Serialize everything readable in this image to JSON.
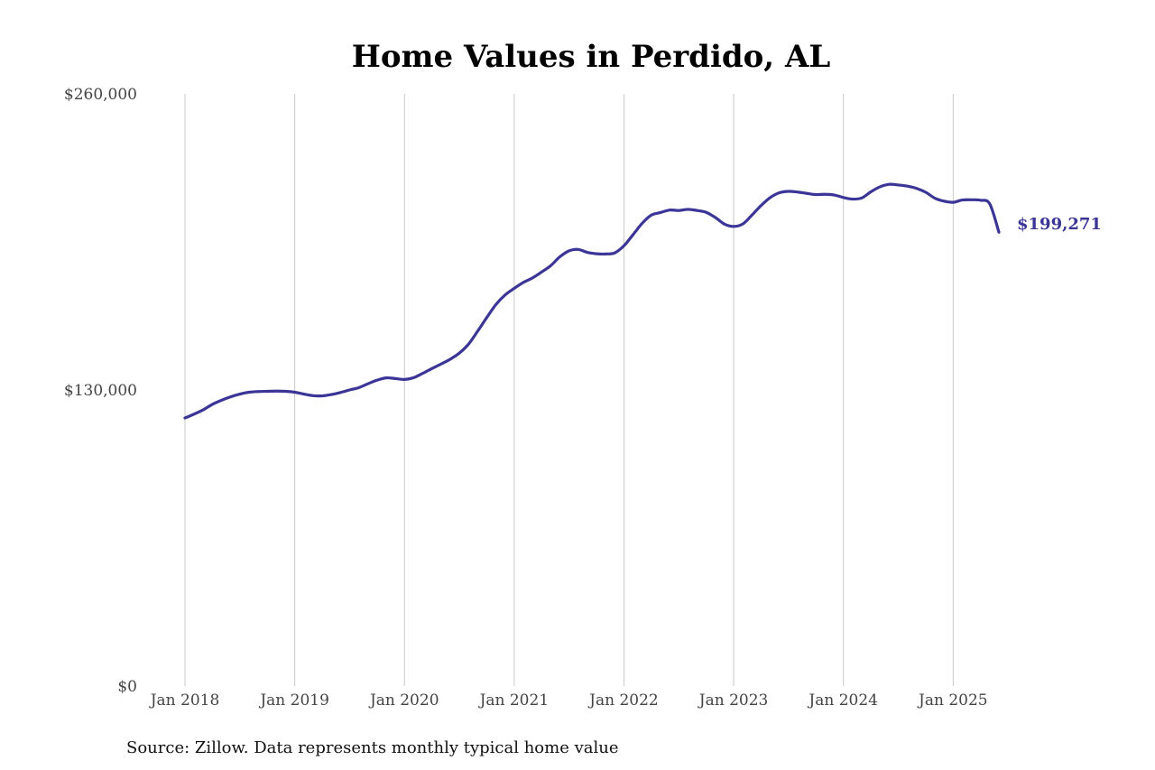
{
  "chart_data": {
    "type": "line",
    "title": "Home Values in Perdido, AL",
    "source": "Source: Zillow. Data represents monthly typical home value",
    "xlabel": "",
    "ylabel": "",
    "ylim": [
      0,
      260000
    ],
    "y_ticks": [
      "$0",
      "$130,000",
      "$260,000"
    ],
    "y_tick_values": [
      0,
      130000,
      260000
    ],
    "x_ticks": [
      "Jan 2018",
      "Jan 2019",
      "Jan 2020",
      "Jan 2021",
      "Jan 2022",
      "Jan 2023",
      "Jan 2024",
      "Jan 2025"
    ],
    "x_tick_values": [
      "2018-01",
      "2019-01",
      "2020-01",
      "2021-01",
      "2022-01",
      "2023-01",
      "2024-01",
      "2025-01"
    ],
    "xlim": [
      "2018-01",
      "2025-06"
    ],
    "grid": "vertical",
    "legend": "none",
    "line_color": "#3a3597",
    "grid_color": "#c8c8c8",
    "end_label": "$199,271",
    "series": [
      {
        "x": [
          "2018-01",
          "2018-02",
          "2018-03",
          "2018-04",
          "2018-05",
          "2018-06",
          "2018-07",
          "2018-08",
          "2018-09",
          "2018-10",
          "2018-11",
          "2018-12",
          "2019-01",
          "2019-02",
          "2019-03",
          "2019-04",
          "2019-05",
          "2019-06",
          "2019-07",
          "2019-08",
          "2019-09",
          "2019-10",
          "2019-11",
          "2019-12",
          "2020-01",
          "2020-02",
          "2020-03",
          "2020-04",
          "2020-05",
          "2020-06",
          "2020-07",
          "2020-08",
          "2020-09",
          "2020-10",
          "2020-11",
          "2020-12",
          "2021-01",
          "2021-02",
          "2021-03",
          "2021-04",
          "2021-05",
          "2021-06",
          "2021-07",
          "2021-08",
          "2021-09",
          "2021-10",
          "2021-11",
          "2021-12",
          "2022-01",
          "2022-02",
          "2022-03",
          "2022-04",
          "2022-05",
          "2022-06",
          "2022-07",
          "2022-08",
          "2022-09",
          "2022-10",
          "2022-11",
          "2022-12",
          "2023-01",
          "2023-02",
          "2023-03",
          "2023-04",
          "2023-05",
          "2023-06",
          "2023-07",
          "2023-08",
          "2023-09",
          "2023-10",
          "2023-11",
          "2023-12",
          "2024-01",
          "2024-02",
          "2024-03",
          "2024-04",
          "2024-05",
          "2024-06",
          "2024-07",
          "2024-08",
          "2024-09",
          "2024-10",
          "2024-11",
          "2024-12",
          "2025-01",
          "2025-02",
          "2025-03",
          "2025-04",
          "2025-05",
          "2025-06"
        ],
        "values": [
          117700,
          119400,
          121300,
          123700,
          125500,
          127000,
          128200,
          129000,
          129300,
          129400,
          129500,
          129400,
          129000,
          128200,
          127500,
          127400,
          128000,
          128900,
          130000,
          131000,
          132700,
          134300,
          135300,
          135000,
          134600,
          135400,
          137300,
          139400,
          141400,
          143500,
          146200,
          150100,
          155800,
          161800,
          167500,
          171700,
          174600,
          177200,
          179200,
          181800,
          184600,
          188500,
          191100,
          191700,
          190400,
          189800,
          189700,
          190200,
          193300,
          198200,
          203200,
          206800,
          207900,
          209000,
          208800,
          209300,
          208800,
          208000,
          205700,
          202800,
          201800,
          202900,
          206800,
          211000,
          214500,
          216600,
          217200,
          216900,
          216300,
          215800,
          215900,
          215600,
          214500,
          213800,
          214300,
          217000,
          219200,
          220300,
          220000,
          219500,
          218500,
          216800,
          214200,
          212900,
          212400,
          213400,
          213500,
          213300,
          211700,
          199271
        ]
      }
    ]
  }
}
